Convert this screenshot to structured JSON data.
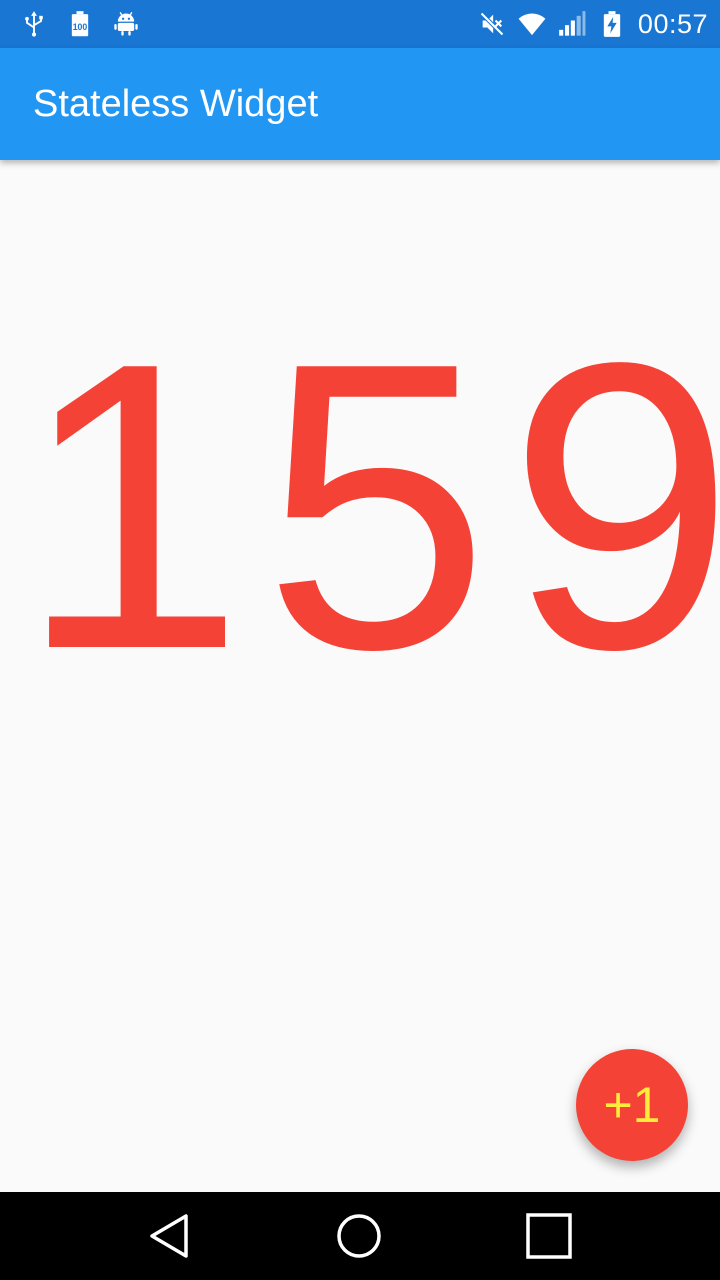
{
  "status_bar": {
    "time": "00:57",
    "left_icons": [
      "usb-icon",
      "battery-100-notification-icon",
      "android-debug-icon"
    ],
    "right_icons": [
      "mute-icon",
      "wifi-icon",
      "cell-signal-icon",
      "battery-charging-icon"
    ]
  },
  "app_bar": {
    "title": "Stateless Widget"
  },
  "main": {
    "counter_value": "159"
  },
  "fab": {
    "label": "+1"
  },
  "nav_bar": {
    "buttons": [
      "back-icon",
      "home-icon",
      "recents-icon"
    ]
  },
  "colors": {
    "status_bar": "#1976d2",
    "app_bar": "#2196f3",
    "background": "#fafafa",
    "counter_text": "#f44336",
    "fab_background": "#f44336",
    "fab_text": "#ffeb3b",
    "nav_bar": "#000000"
  }
}
